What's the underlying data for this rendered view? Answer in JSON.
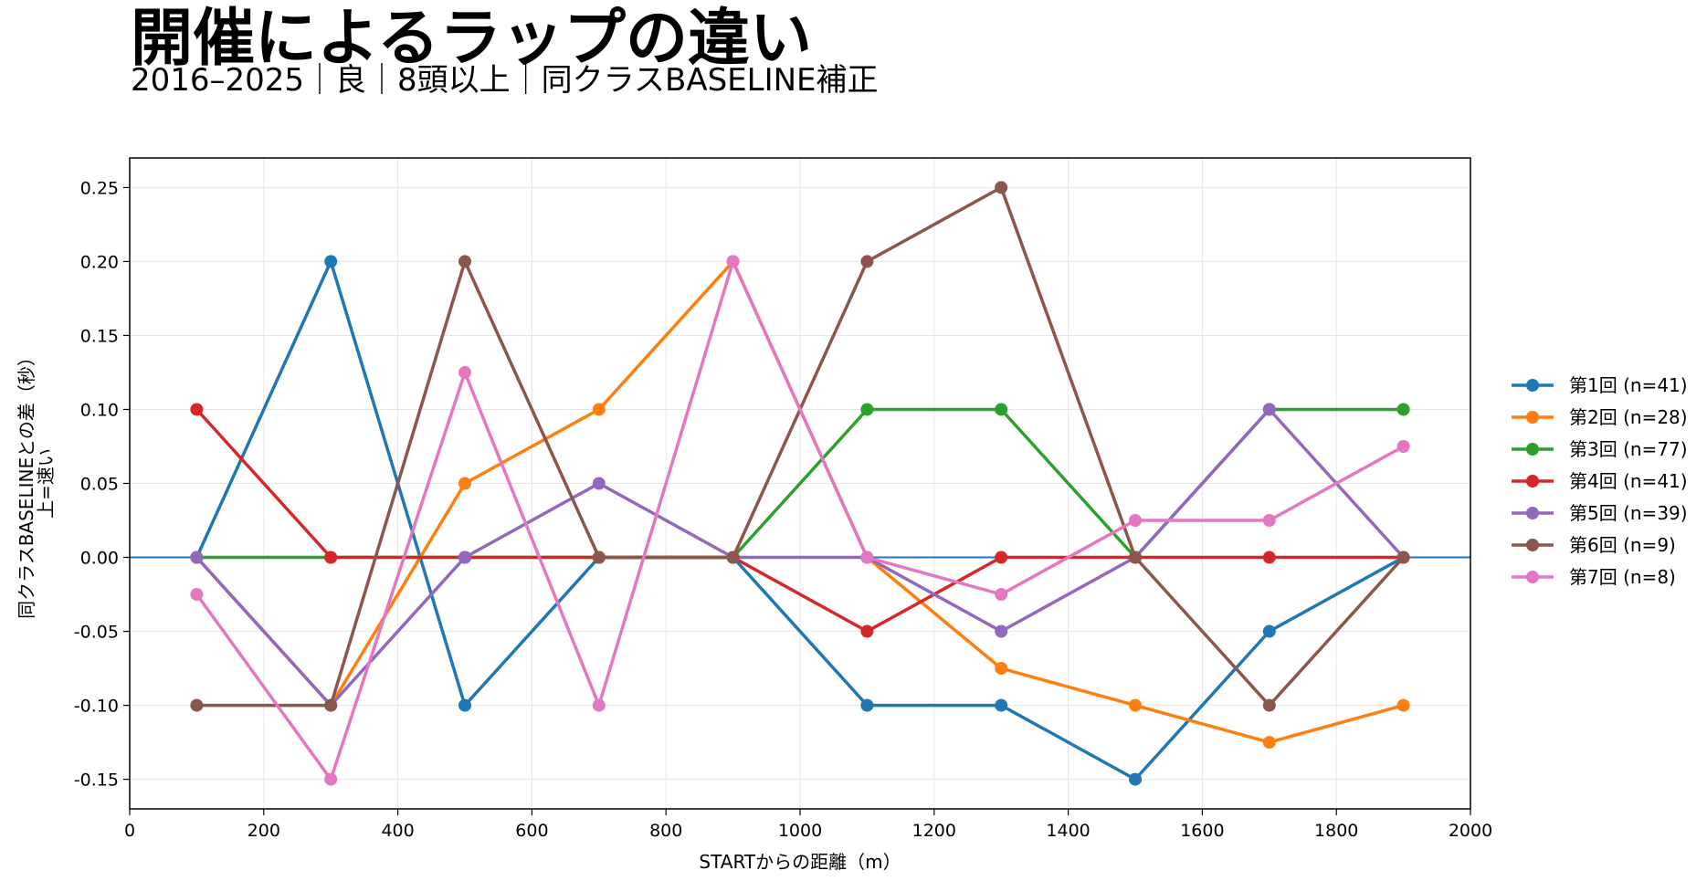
{
  "chart_data": {
    "type": "line",
    "title": "開催によるラップの違い",
    "subtitle": "2016–2025｜良｜8頭以上｜同クラスBASELINE補正",
    "xlabel": "STARTからの距離（m）",
    "ylabel_line1": "同クラスBASELINEとの差（秒）",
    "ylabel_line2": "上=速い",
    "xlim": [
      0,
      2000
    ],
    "ylim": [
      -0.17,
      0.27
    ],
    "x_ticks": [
      0,
      200,
      400,
      600,
      800,
      1000,
      1200,
      1400,
      1600,
      1800,
      2000
    ],
    "y_ticks": [
      0.25,
      0.2,
      0.15,
      0.1,
      0.05,
      0.0,
      -0.05,
      -0.1,
      -0.15
    ],
    "y_tick_labels": [
      "0.25",
      "0.20",
      "0.15",
      "0.10",
      "0.05",
      "0.00",
      "-0.05",
      "-0.10",
      "-0.15"
    ],
    "grid": true,
    "legend_position": "outside-right",
    "zero_line_color": "#1f77b4",
    "x": [
      100,
      300,
      500,
      700,
      900,
      1100,
      1300,
      1500,
      1700,
      1900
    ],
    "series": [
      {
        "name": "第1回 (n=41)",
        "color": "#1f77b4",
        "values": [
          0.0,
          0.2,
          -0.1,
          0.0,
          0.0,
          -0.1,
          -0.1,
          -0.15,
          -0.05,
          0.0
        ]
      },
      {
        "name": "第2回 (n=28)",
        "color": "#ff7f0e",
        "values": [
          0.0,
          -0.1,
          0.05,
          0.1,
          0.2,
          0.0,
          -0.075,
          -0.1,
          -0.125,
          -0.1
        ]
      },
      {
        "name": "第3回 (n=77)",
        "color": "#2ca02c",
        "values": [
          0.0,
          0.0,
          0.0,
          0.0,
          0.0,
          0.1,
          0.1,
          0.0,
          0.1,
          0.1
        ]
      },
      {
        "name": "第4回 (n=41)",
        "color": "#d62728",
        "values": [
          0.1,
          0.0,
          0.0,
          0.0,
          0.0,
          -0.05,
          0.0,
          0.0,
          0.0,
          0.0
        ]
      },
      {
        "name": "第5回 (n=39)",
        "color": "#9467bd",
        "values": [
          0.0,
          -0.1,
          0.0,
          0.05,
          0.0,
          0.0,
          -0.05,
          0.0,
          0.1,
          0.0
        ]
      },
      {
        "name": "第6回 (n=9)",
        "color": "#8c564b",
        "values": [
          -0.1,
          -0.1,
          0.2,
          0.0,
          0.0,
          0.2,
          0.25,
          0.0,
          -0.1,
          0.0
        ]
      },
      {
        "name": "第7回 (n=8)",
        "color": "#e377c2",
        "values": [
          -0.025,
          -0.15,
          0.125,
          -0.1,
          0.2,
          0.0,
          -0.025,
          0.025,
          0.025,
          0.075
        ]
      }
    ]
  }
}
